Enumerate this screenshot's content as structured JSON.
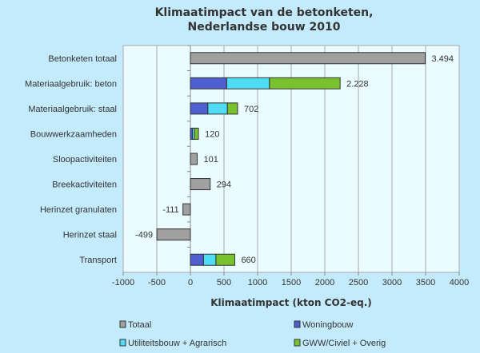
{
  "chart_data": {
    "type": "bar",
    "orientation": "horizontal",
    "stacked": true,
    "title": [
      "Klimaatimpact van de betonketen,",
      "Nederlandse bouw 2010"
    ],
    "xlabel": "Klimaatimpact (kton CO2-eq.)",
    "ylabel": "",
    "xlim": [
      -1000,
      4000
    ],
    "xticks": [
      -1000,
      -500,
      0,
      500,
      1000,
      1500,
      2000,
      2500,
      3000,
      3500,
      4000
    ],
    "xtick_labels": [
      "-1000",
      "-500",
      "0",
      "500",
      "1000",
      "1500",
      "2000",
      "2500",
      "3000",
      "3500",
      "4000"
    ],
    "grid": "vertical",
    "legend_position": "bottom",
    "categories": [
      "Betonketen totaal",
      "Materiaalgebruik: beton",
      "Materiaalgebruik: staal",
      "Bouwwerkzaamheden",
      "Sloopactiviteiten",
      "Breekactiviteiten",
      "Herinzet granulaten",
      "Herinzet staal",
      "Transport"
    ],
    "series": [
      {
        "name": "Totaal",
        "color": "#a0a0a0",
        "values": [
          3494,
          null,
          null,
          null,
          101,
          294,
          -111,
          -499,
          null
        ]
      },
      {
        "name": "Woningbouw",
        "color": "#4f5fcf",
        "values": [
          null,
          540,
          260,
          30,
          null,
          null,
          null,
          null,
          195
        ]
      },
      {
        "name": "Utiliteitsbouw + Agrarisch",
        "color": "#4fdcf5",
        "values": [
          null,
          637,
          291,
          30,
          null,
          null,
          null,
          null,
          185
        ]
      },
      {
        "name": "GWW/Civiel + Overig",
        "color": "#77c22e",
        "values": [
          null,
          1051,
          151,
          60,
          null,
          null,
          null,
          null,
          280
        ]
      }
    ],
    "data_labels": [
      "3.494",
      "2.228",
      "702",
      "120",
      "101",
      "294",
      "-111",
      "-499",
      "660"
    ]
  }
}
